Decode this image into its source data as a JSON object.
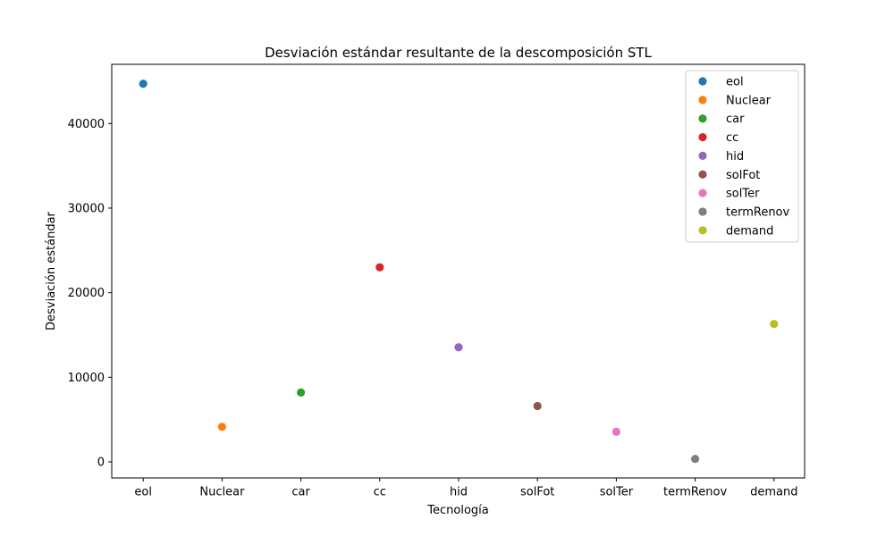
{
  "chart_data": {
    "type": "scatter",
    "title": "Desviación estándar resultante de la descomposición STL",
    "xlabel": "Tecnología",
    "ylabel": "Desviación estándar",
    "categories": [
      "eol",
      "Nuclear",
      "car",
      "cc",
      "hid",
      "solFot",
      "solTer",
      "termRenov",
      "demand"
    ],
    "series": [
      {
        "name": "eol",
        "x": "eol",
        "y": 44700,
        "color": "#1f77b4"
      },
      {
        "name": "Nuclear",
        "x": "Nuclear",
        "y": 4150,
        "color": "#ff7f0e"
      },
      {
        "name": "car",
        "x": "car",
        "y": 8200,
        "color": "#2ca02c"
      },
      {
        "name": "cc",
        "x": "cc",
        "y": 23000,
        "color": "#d62728"
      },
      {
        "name": "hid",
        "x": "hid",
        "y": 13550,
        "color": "#9467bd"
      },
      {
        "name": "solFot",
        "x": "solFot",
        "y": 6600,
        "color": "#8c564b"
      },
      {
        "name": "solTer",
        "x": "solTer",
        "y": 3550,
        "color": "#e377c2"
      },
      {
        "name": "termRenov",
        "x": "termRenov",
        "y": 350,
        "color": "#7f7f7f"
      },
      {
        "name": "demand",
        "x": "demand",
        "y": 16300,
        "color": "#bcbd22"
      }
    ],
    "yticks": [
      0,
      10000,
      20000,
      30000,
      40000
    ],
    "ylim": [
      -1900,
      47000
    ],
    "grid": false,
    "legend_position": "top-right"
  }
}
